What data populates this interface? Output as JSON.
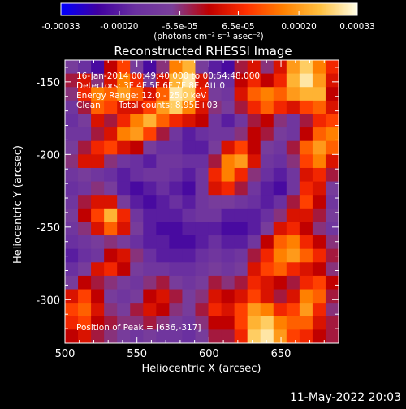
{
  "chart_data": {
    "type": "heatmap",
    "title": "Reconstructed RHESSI Image",
    "xlabel": "Heliocentric X (arcsec)",
    "ylabel": "Heliocentric Y (arcsec)",
    "xlim": [
      500,
      690
    ],
    "ylim": [
      -330,
      -135
    ],
    "x_ticks": [
      500,
      550,
      600,
      650
    ],
    "y_ticks": [
      -150,
      -200,
      -250,
      -300
    ],
    "colorbar": {
      "range": [
        -0.00033,
        0.00033
      ],
      "tick_values": [
        -0.00033,
        -0.0002,
        -6.5e-05,
        6.5e-05,
        0.0002,
        0.00033
      ],
      "tick_labels": [
        "-0.00033",
        "-0.00020",
        "-6.5e-05",
        "6.5e-05",
        "0.00020",
        "0.00033"
      ],
      "unit_label": "(photons cm⁻² s⁻¹ asec⁻²)",
      "colors": [
        "#0000ff",
        "#4000a0",
        "#6a30a0",
        "#7a3f9a",
        "#c00000",
        "#ff3000",
        "#ff8000",
        "#ffc040",
        "#ffffe8"
      ]
    },
    "grid": false,
    "legend": "none",
    "grid_rows": 21,
    "grid_cols": 21,
    "grid_data": [
      [
        0.35,
        0.25,
        0.15,
        0.5,
        0.65,
        0.35,
        0.15,
        0.4,
        0.75,
        0.85,
        0.35,
        0.2,
        0.15,
        0.45,
        0.55,
        0.4,
        0.55,
        0.8,
        0.9,
        0.75,
        0.6
      ],
      [
        0.45,
        0.55,
        0.4,
        0.55,
        0.75,
        0.6,
        0.35,
        0.55,
        0.85,
        0.95,
        0.55,
        0.3,
        0.25,
        0.5,
        0.6,
        0.5,
        0.6,
        0.85,
        0.95,
        0.8,
        0.55
      ],
      [
        0.4,
        0.6,
        0.75,
        0.7,
        0.8,
        0.7,
        0.55,
        0.7,
        0.95,
        0.9,
        0.6,
        0.35,
        0.3,
        0.55,
        0.7,
        0.75,
        0.7,
        0.8,
        0.85,
        0.85,
        0.5
      ],
      [
        0.3,
        0.45,
        0.7,
        0.65,
        0.55,
        0.55,
        0.65,
        0.8,
        0.9,
        0.75,
        0.55,
        0.4,
        0.35,
        0.45,
        0.6,
        0.7,
        0.6,
        0.55,
        0.65,
        0.7,
        0.55
      ],
      [
        0.25,
        0.35,
        0.55,
        0.45,
        0.6,
        0.75,
        0.85,
        0.7,
        0.6,
        0.55,
        0.5,
        0.3,
        0.2,
        0.3,
        0.45,
        0.5,
        0.4,
        0.3,
        0.45,
        0.6,
        0.65
      ],
      [
        0.3,
        0.3,
        0.45,
        0.55,
        0.75,
        0.8,
        0.65,
        0.45,
        0.3,
        0.2,
        0.25,
        0.3,
        0.3,
        0.4,
        0.5,
        0.45,
        0.35,
        0.3,
        0.5,
        0.7,
        0.75
      ],
      [
        0.35,
        0.45,
        0.6,
        0.65,
        0.55,
        0.5,
        0.35,
        0.25,
        0.25,
        0.2,
        0.2,
        0.35,
        0.55,
        0.65,
        0.5,
        0.35,
        0.3,
        0.45,
        0.7,
        0.8,
        0.7
      ],
      [
        0.4,
        0.55,
        0.55,
        0.4,
        0.3,
        0.25,
        0.2,
        0.3,
        0.3,
        0.25,
        0.25,
        0.45,
        0.75,
        0.8,
        0.55,
        0.3,
        0.25,
        0.4,
        0.65,
        0.75,
        0.55
      ],
      [
        0.3,
        0.35,
        0.3,
        0.25,
        0.2,
        0.25,
        0.3,
        0.3,
        0.25,
        0.2,
        0.3,
        0.6,
        0.75,
        0.6,
        0.4,
        0.25,
        0.2,
        0.3,
        0.55,
        0.6,
        0.45
      ],
      [
        0.25,
        0.3,
        0.4,
        0.35,
        0.2,
        0.15,
        0.2,
        0.25,
        0.2,
        0.15,
        0.3,
        0.55,
        0.6,
        0.45,
        0.3,
        0.2,
        0.15,
        0.3,
        0.6,
        0.55,
        0.35
      ],
      [
        0.3,
        0.45,
        0.55,
        0.55,
        0.35,
        0.2,
        0.15,
        0.2,
        0.25,
        0.2,
        0.3,
        0.35,
        0.35,
        0.3,
        0.25,
        0.2,
        0.25,
        0.45,
        0.65,
        0.5,
        0.3
      ],
      [
        0.35,
        0.5,
        0.65,
        0.85,
        0.6,
        0.3,
        0.2,
        0.2,
        0.2,
        0.25,
        0.3,
        0.3,
        0.2,
        0.2,
        0.2,
        0.25,
        0.4,
        0.55,
        0.55,
        0.45,
        0.35
      ],
      [
        0.3,
        0.4,
        0.55,
        0.7,
        0.55,
        0.35,
        0.2,
        0.15,
        0.15,
        0.2,
        0.2,
        0.2,
        0.15,
        0.15,
        0.2,
        0.35,
        0.55,
        0.6,
        0.5,
        0.4,
        0.3
      ],
      [
        0.25,
        0.3,
        0.35,
        0.4,
        0.35,
        0.25,
        0.2,
        0.2,
        0.15,
        0.15,
        0.2,
        0.25,
        0.2,
        0.2,
        0.3,
        0.5,
        0.7,
        0.75,
        0.6,
        0.5,
        0.4
      ],
      [
        0.2,
        0.25,
        0.3,
        0.5,
        0.55,
        0.4,
        0.25,
        0.2,
        0.2,
        0.2,
        0.25,
        0.3,
        0.25,
        0.3,
        0.45,
        0.6,
        0.75,
        0.8,
        0.7,
        0.6,
        0.45
      ],
      [
        0.25,
        0.35,
        0.55,
        0.6,
        0.5,
        0.35,
        0.3,
        0.3,
        0.25,
        0.25,
        0.3,
        0.35,
        0.3,
        0.35,
        0.55,
        0.65,
        0.7,
        0.6,
        0.55,
        0.5,
        0.4
      ],
      [
        0.35,
        0.5,
        0.45,
        0.4,
        0.35,
        0.3,
        0.4,
        0.45,
        0.35,
        0.3,
        0.35,
        0.45,
        0.4,
        0.45,
        0.6,
        0.55,
        0.5,
        0.45,
        0.6,
        0.65,
        0.5
      ],
      [
        0.55,
        0.65,
        0.5,
        0.35,
        0.3,
        0.35,
        0.5,
        0.55,
        0.45,
        0.35,
        0.4,
        0.55,
        0.5,
        0.55,
        0.65,
        0.55,
        0.45,
        0.55,
        0.75,
        0.7,
        0.45
      ],
      [
        0.65,
        0.7,
        0.55,
        0.4,
        0.35,
        0.45,
        0.55,
        0.5,
        0.4,
        0.35,
        0.45,
        0.6,
        0.55,
        0.65,
        0.8,
        0.75,
        0.6,
        0.65,
        0.8,
        0.6,
        0.4
      ],
      [
        0.6,
        0.65,
        0.5,
        0.45,
        0.4,
        0.4,
        0.45,
        0.4,
        0.35,
        0.3,
        0.4,
        0.5,
        0.5,
        0.65,
        0.85,
        0.9,
        0.75,
        0.7,
        0.7,
        0.55,
        0.45
      ],
      [
        0.5,
        0.55,
        0.45,
        0.4,
        0.35,
        0.3,
        0.35,
        0.3,
        0.3,
        0.25,
        0.35,
        0.45,
        0.45,
        0.6,
        0.9,
        0.95,
        0.8,
        0.65,
        0.6,
        0.5,
        0.45
      ]
    ]
  },
  "annotations": {
    "time_range": "16-Jan-2014 00:49:40.000 to 00:54:48.000",
    "detectors": "Detectors: 3F 4F 5F 6F 7F 8F, Att 0",
    "energy_range": "Energy Range: 12.0 - 25.0 keV",
    "method": "Clean",
    "total_counts": "Total counts: 8.95E+03",
    "peak_position": "Position of Peak = [636,-317]"
  },
  "footer": {
    "date_stamp": "11-May-2022 20:03"
  }
}
